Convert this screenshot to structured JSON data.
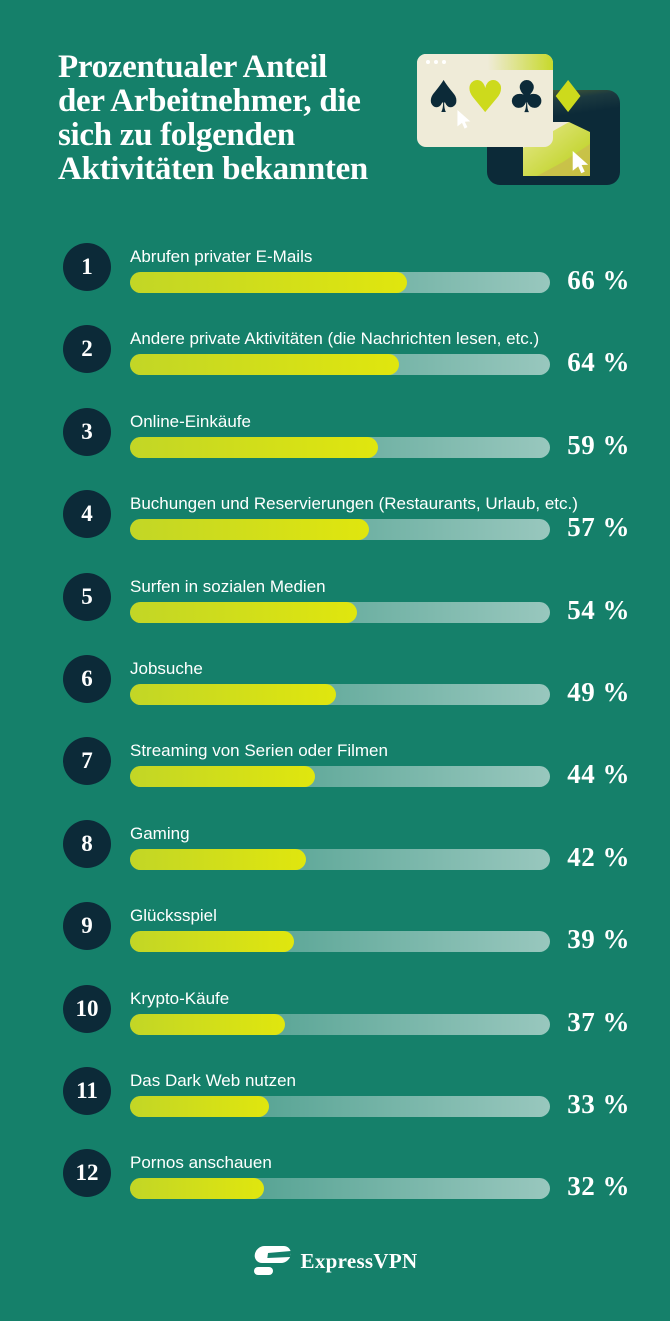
{
  "page": {
    "background_color": "#15806a",
    "accent_lime": "#d6e014",
    "navy": "#0c2a38",
    "cream": "#efebd8",
    "text_color": "#ffffff"
  },
  "header": {
    "title": "Prozentualer Anteil\nder Arbeitnehmer, die\nsich zu folgenden\nAktivitäten bekannten",
    "illustration": {
      "suits": {
        "spade": "♠",
        "heart": "♥",
        "club": "♣",
        "diamond": "♦"
      }
    }
  },
  "chart_data": {
    "type": "bar",
    "orientation": "horizontal",
    "title": "Prozentualer Anteil der Arbeitnehmer, die sich zu folgenden Aktivitäten bekannten",
    "categories": [
      "Abrufen privater E-Mails",
      "Andere private Aktivitäten (die Nachrichten lesen, etc.)",
      "Online-Einkäufe",
      "Buchungen und Reservierungen (Restaurants, Urlaub, etc.)",
      "Surfen in sozialen Medien",
      "Jobsuche",
      "Streaming von Serien oder Filmen",
      "Gaming",
      "Glücksspiel",
      "Krypto-Käufe",
      "Das Dark Web nutzen",
      "Pornos anschauen"
    ],
    "values": [
      66,
      64,
      59,
      57,
      54,
      49,
      44,
      42,
      39,
      37,
      33,
      32
    ],
    "rank_labels": [
      "1",
      "2",
      "3",
      "4",
      "5",
      "6",
      "7",
      "8",
      "9",
      "10",
      "11",
      "12"
    ],
    "value_suffix": " %",
    "xlim": [
      0,
      100
    ],
    "grid": false,
    "legend": false,
    "bar_color": "#d6e014",
    "track_style": "white gradient overlay, lighter to the right"
  },
  "footer": {
    "brand": "ExpressVPN"
  }
}
